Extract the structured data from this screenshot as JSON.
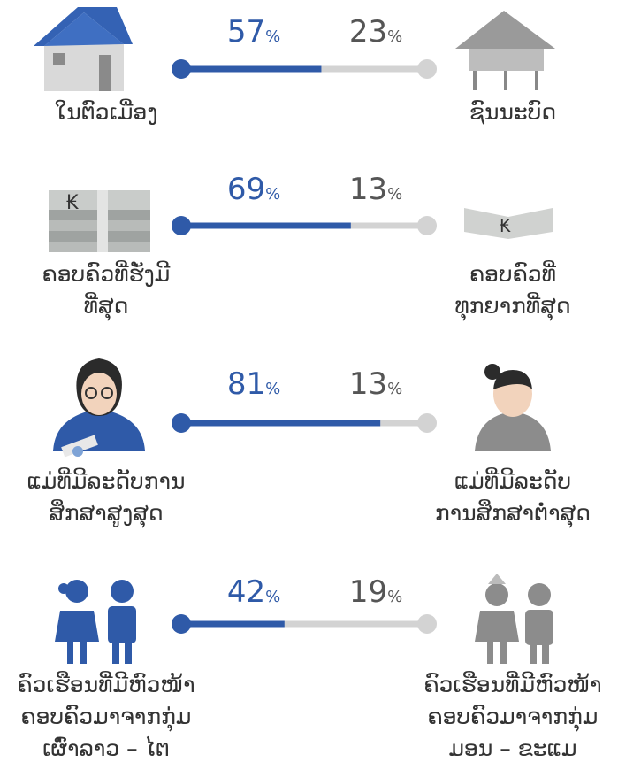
{
  "unit": "%",
  "rows": [
    {
      "left": {
        "label": [
          "ໃນຕົວເມືອງ"
        ],
        "value": 57
      },
      "right": {
        "label": [
          "ຊົນນະບົດ"
        ],
        "value": 23
      }
    },
    {
      "left": {
        "label": [
          "ຄອບຄົວທີ່ຮັ່ງມີ",
          "ທີ່ສຸດ"
        ],
        "value": 69
      },
      "right": {
        "label": [
          "ຄອບຄົວທີ່",
          "ທຸກຍາກທີ່ສຸດ"
        ],
        "value": 13
      }
    },
    {
      "left": {
        "label": [
          "ແມ່ທີ່ມີລະດັບການ",
          "ສຶກສາສູງສຸດ"
        ],
        "value": 81
      },
      "right": {
        "label": [
          "ແມ່ທີ່ມີລະດັບ",
          "ການສຶກສາຕໍ່າສຸດ"
        ],
        "value": 13
      }
    },
    {
      "left": {
        "label": [
          "ຄົວເຮືອນທີ່ມີຫົວໜ້າ",
          "ຄອບຄົວມາຈາກກຸ່ມ",
          "ເຜົ່າລາວ – ໄຕ"
        ],
        "value": 42
      },
      "right": {
        "label": [
          "ຄົວເຮືອນທີ່ມີຫົວໜ້າ",
          "ຄອບຄົວມາຈາກກຸ່ມ",
          "ມອນ – ຂະແມ"
        ],
        "value": 19
      }
    }
  ]
}
